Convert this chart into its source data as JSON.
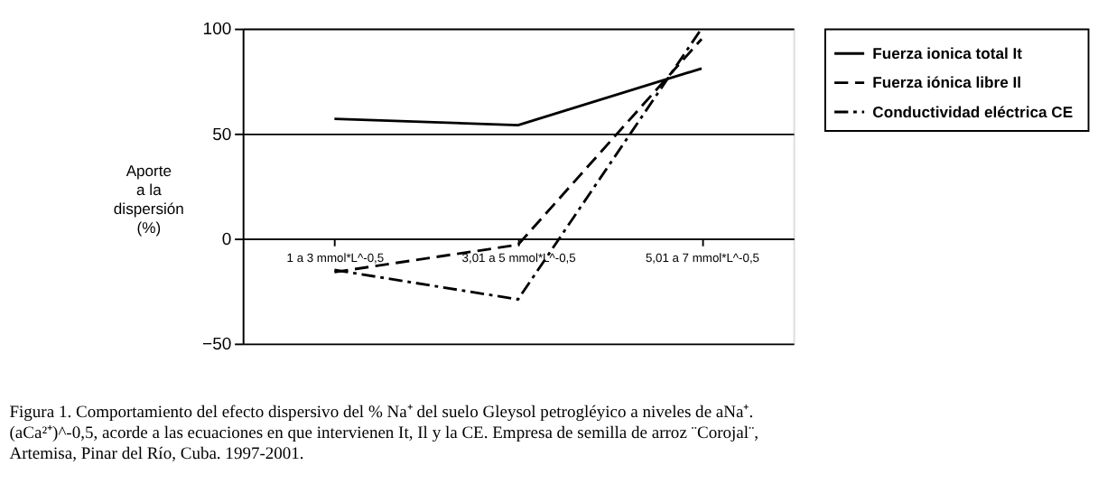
{
  "chart_data": {
    "type": "line",
    "ylabel": "Aporte\na la\ndispersión\n(%)",
    "categories": [
      "1 a 3 mmol*L^-0,5",
      "3,01 a 5 mmol*L^-0,5",
      "5,01 a 7 mmol*L^-0,5"
    ],
    "series": [
      {
        "name": "Fuerza ionica total It",
        "color": "#000000",
        "line_style": "solid",
        "values": [
          57,
          54,
          81
        ]
      },
      {
        "name": "Fuerza iónica libre  Il",
        "color": "#000000",
        "line_style": "dashed",
        "values": [
          -16,
          -3,
          95
        ]
      },
      {
        "name": "Conductividad eléctrica  CE",
        "color": "#000000",
        "line_style": "dashdot",
        "values": [
          -15,
          -29,
          100
        ]
      }
    ],
    "ylim": [
      -50,
      100
    ],
    "yticks": [
      -50,
      0,
      50,
      100
    ],
    "grid": "y",
    "legend": "right",
    "annotations": [
      "Figura 1.    Comportamiento del efecto dispersivo del % Na⁺ del suelo Gleysol petrogléyico a niveles de aNa⁺. (aCa²⁺)^-0,5, acorde a las ecuaciones en que intervienen It, Il y la CE. Empresa de semilla de arroz ¨Corojal¨, Artemisa, Pinar del Río, Cuba. 1997-2001."
    ]
  }
}
